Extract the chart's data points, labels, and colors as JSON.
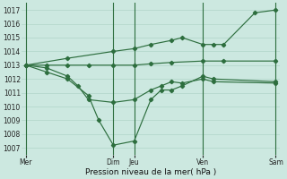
{
  "xlabel": "Pression niveau de la mer( hPa )",
  "background_color": "#cce8e0",
  "line_color": "#2d6e3e",
  "grid_color": "#b0d4c8",
  "grid_color2": "#ffffff",
  "ylim": [
    1006.5,
    1017.5
  ],
  "yticks": [
    1007,
    1008,
    1009,
    1010,
    1011,
    1012,
    1013,
    1014,
    1015,
    1016,
    1017
  ],
  "day_labels": [
    "Mer",
    "Dim",
    "Jeu",
    "Ven",
    "Sam"
  ],
  "day_positions": [
    0,
    4.2,
    5.2,
    8.5,
    12.0
  ],
  "vline_positions": [
    0,
    4.2,
    5.2,
    8.5,
    12.0
  ],
  "xlim": [
    -0.2,
    12.2
  ],
  "line_flat": {
    "x": [
      0,
      1.0,
      2.0,
      3.0,
      4.2,
      5.2,
      6.0,
      7.0,
      8.5,
      9.5,
      12.0
    ],
    "y": [
      1013.0,
      1013.0,
      1013.0,
      1013.0,
      1013.0,
      1013.0,
      1013.1,
      1013.2,
      1013.3,
      1013.3,
      1013.3
    ]
  },
  "line_deep": {
    "x": [
      0,
      1.0,
      2.0,
      3.0,
      3.5,
      4.2,
      5.2,
      6.0,
      6.5,
      7.0,
      7.5,
      8.5,
      9.0,
      12.0
    ],
    "y": [
      1013.0,
      1012.5,
      1012.0,
      1010.8,
      1009.0,
      1007.2,
      1007.5,
      1010.5,
      1011.2,
      1011.2,
      1011.5,
      1012.2,
      1012.0,
      1011.8
    ]
  },
  "line_mid": {
    "x": [
      0,
      1.0,
      2.0,
      2.5,
      3.0,
      4.2,
      5.2,
      6.0,
      6.5,
      7.0,
      7.5,
      8.5,
      9.0,
      12.0
    ],
    "y": [
      1013.0,
      1012.8,
      1012.2,
      1011.5,
      1010.5,
      1010.3,
      1010.5,
      1011.2,
      1011.5,
      1011.8,
      1011.7,
      1012.0,
      1011.8,
      1011.7
    ]
  },
  "line_rise": {
    "x": [
      0,
      2.0,
      4.2,
      5.2,
      6.0,
      7.0,
      7.5,
      8.5,
      9.0,
      9.5,
      11.0,
      12.0
    ],
    "y": [
      1013.0,
      1013.5,
      1014.0,
      1014.2,
      1014.5,
      1014.8,
      1015.0,
      1014.5,
      1014.5,
      1014.5,
      1016.8,
      1017.0
    ]
  }
}
